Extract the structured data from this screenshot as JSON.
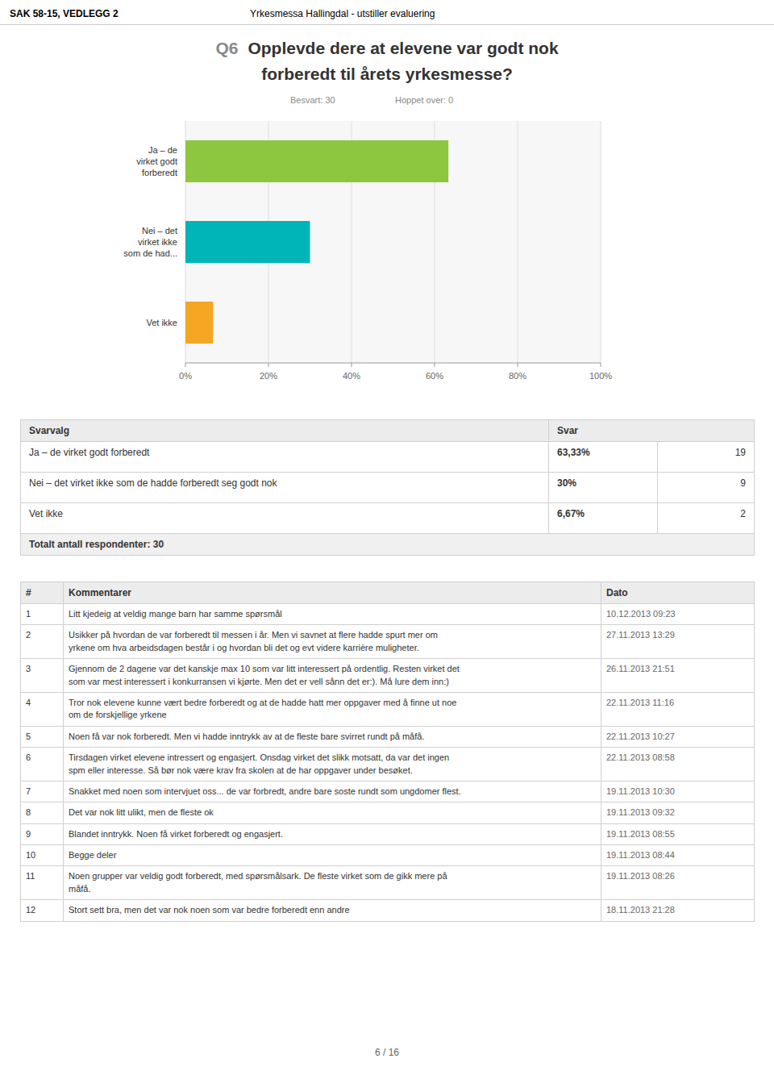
{
  "header": {
    "left": "SAK 58-15, VEDLEGG 2",
    "right": "Yrkesmessa Hallingdal - utstiller evaluering"
  },
  "question": {
    "number": "Q6",
    "lines": [
      "Opplevde dere at elevene var godt nok",
      "forberedt til årets yrkesmesse?"
    ]
  },
  "response_counts": {
    "answered": "Besvart: 30",
    "skipped": "Hoppet over: 0"
  },
  "chart_data": {
    "type": "bar",
    "orientation": "horizontal",
    "categories": [
      "Ja – de\nvirket godt\nforberedt",
      "Nei – det\nvirket ikke\nsom de had...",
      "Vet ikke"
    ],
    "values": [
      63.33,
      30.0,
      6.67
    ],
    "colors": [
      "#8dc63f",
      "#00b5b8",
      "#f5a623"
    ],
    "xlim": [
      0,
      100
    ],
    "xticks": [
      {
        "value": 0,
        "label": "0%"
      },
      {
        "value": 20,
        "label": "20%"
      },
      {
        "value": 40,
        "label": "40%"
      },
      {
        "value": 60,
        "label": "60%"
      },
      {
        "value": 80,
        "label": "80%"
      },
      {
        "value": 100,
        "label": "100%"
      }
    ],
    "grid": true
  },
  "summary_table": {
    "headers": [
      "Svarvalg",
      "Svar"
    ],
    "rows": [
      [
        "Ja – de virket godt forberedt",
        "63,33%",
        "19"
      ],
      [
        "Nei – det virket ikke som de hadde forberedt seg godt nok",
        "30%",
        "9"
      ],
      [
        "Vet ikke",
        "6,67%",
        "2"
      ]
    ],
    "total": "Totalt antall respondenter: 30"
  },
  "comments": {
    "headers": [
      "#",
      "Kommentarer",
      "Dato"
    ],
    "rows": [
      [
        "1",
        "Litt kjedeig at veldig mange barn har samme spørsmål",
        "10.12.2013 09:23"
      ],
      [
        "2",
        "Usikker på hvordan de var forberedt til messen i år. Men vi savnet at flere hadde spurt mer om\nyrkene om hva arbeidsdagen består i og hvordan bli det og evt videre karrière muligheter.",
        "27.11.2013 13:29"
      ],
      [
        "3",
        "Gjennom de 2 dagene var det kanskje max 10 som var litt interessert på ordentlig. Resten virket det\nsom var mest interessert i konkurransen vi kjørte. Men det er vell sånn det er:). Må lure dem inn:)",
        "26.11.2013 21:51"
      ],
      [
        "4",
        "Tror nok elevene kunne vært bedre forberedt og at de hadde hatt mer oppgaver med å finne ut noe\nom de forskjellige yrkene",
        "22.11.2013 11:16"
      ],
      [
        "5",
        "Noen få var nok forberedt. Men vi hadde inntrykk av at de fleste bare svirret rundt på måfå.",
        "22.11.2013 10:27"
      ],
      [
        "6",
        "Tirsdagen virket elevene intressert og engasjert. Onsdag virket det slikk motsatt, da var det ingen\nspm eller interesse. Så bør nok være krav fra skolen at de har oppgaver under besøket.",
        "22.11.2013 08:58"
      ],
      [
        "7",
        "Snakket med noen som intervjuet oss... de var forbredt, andre bare soste rundt som ungdomer flest.",
        "19.11.2013 10:30"
      ],
      [
        "8",
        "Det var nok litt ulikt, men de fleste ok",
        "19.11.2013 09:32"
      ],
      [
        "9",
        "Blandet inntrykk. Noen få virket forberedt og engasjert.",
        "19.11.2013 08:55"
      ],
      [
        "10",
        "Begge deler",
        "19.11.2013 08:44"
      ],
      [
        "11",
        "Noen grupper var veldig godt forberedt, med spørsmålsark. De fleste virket som de gikk mere på\nmåfå.",
        "19.11.2013 08:26"
      ],
      [
        "12",
        "Stort sett bra, men det var nok noen som var bedre forberedt enn andre",
        "18.11.2013 21:28"
      ]
    ]
  },
  "footer": "6 / 16"
}
